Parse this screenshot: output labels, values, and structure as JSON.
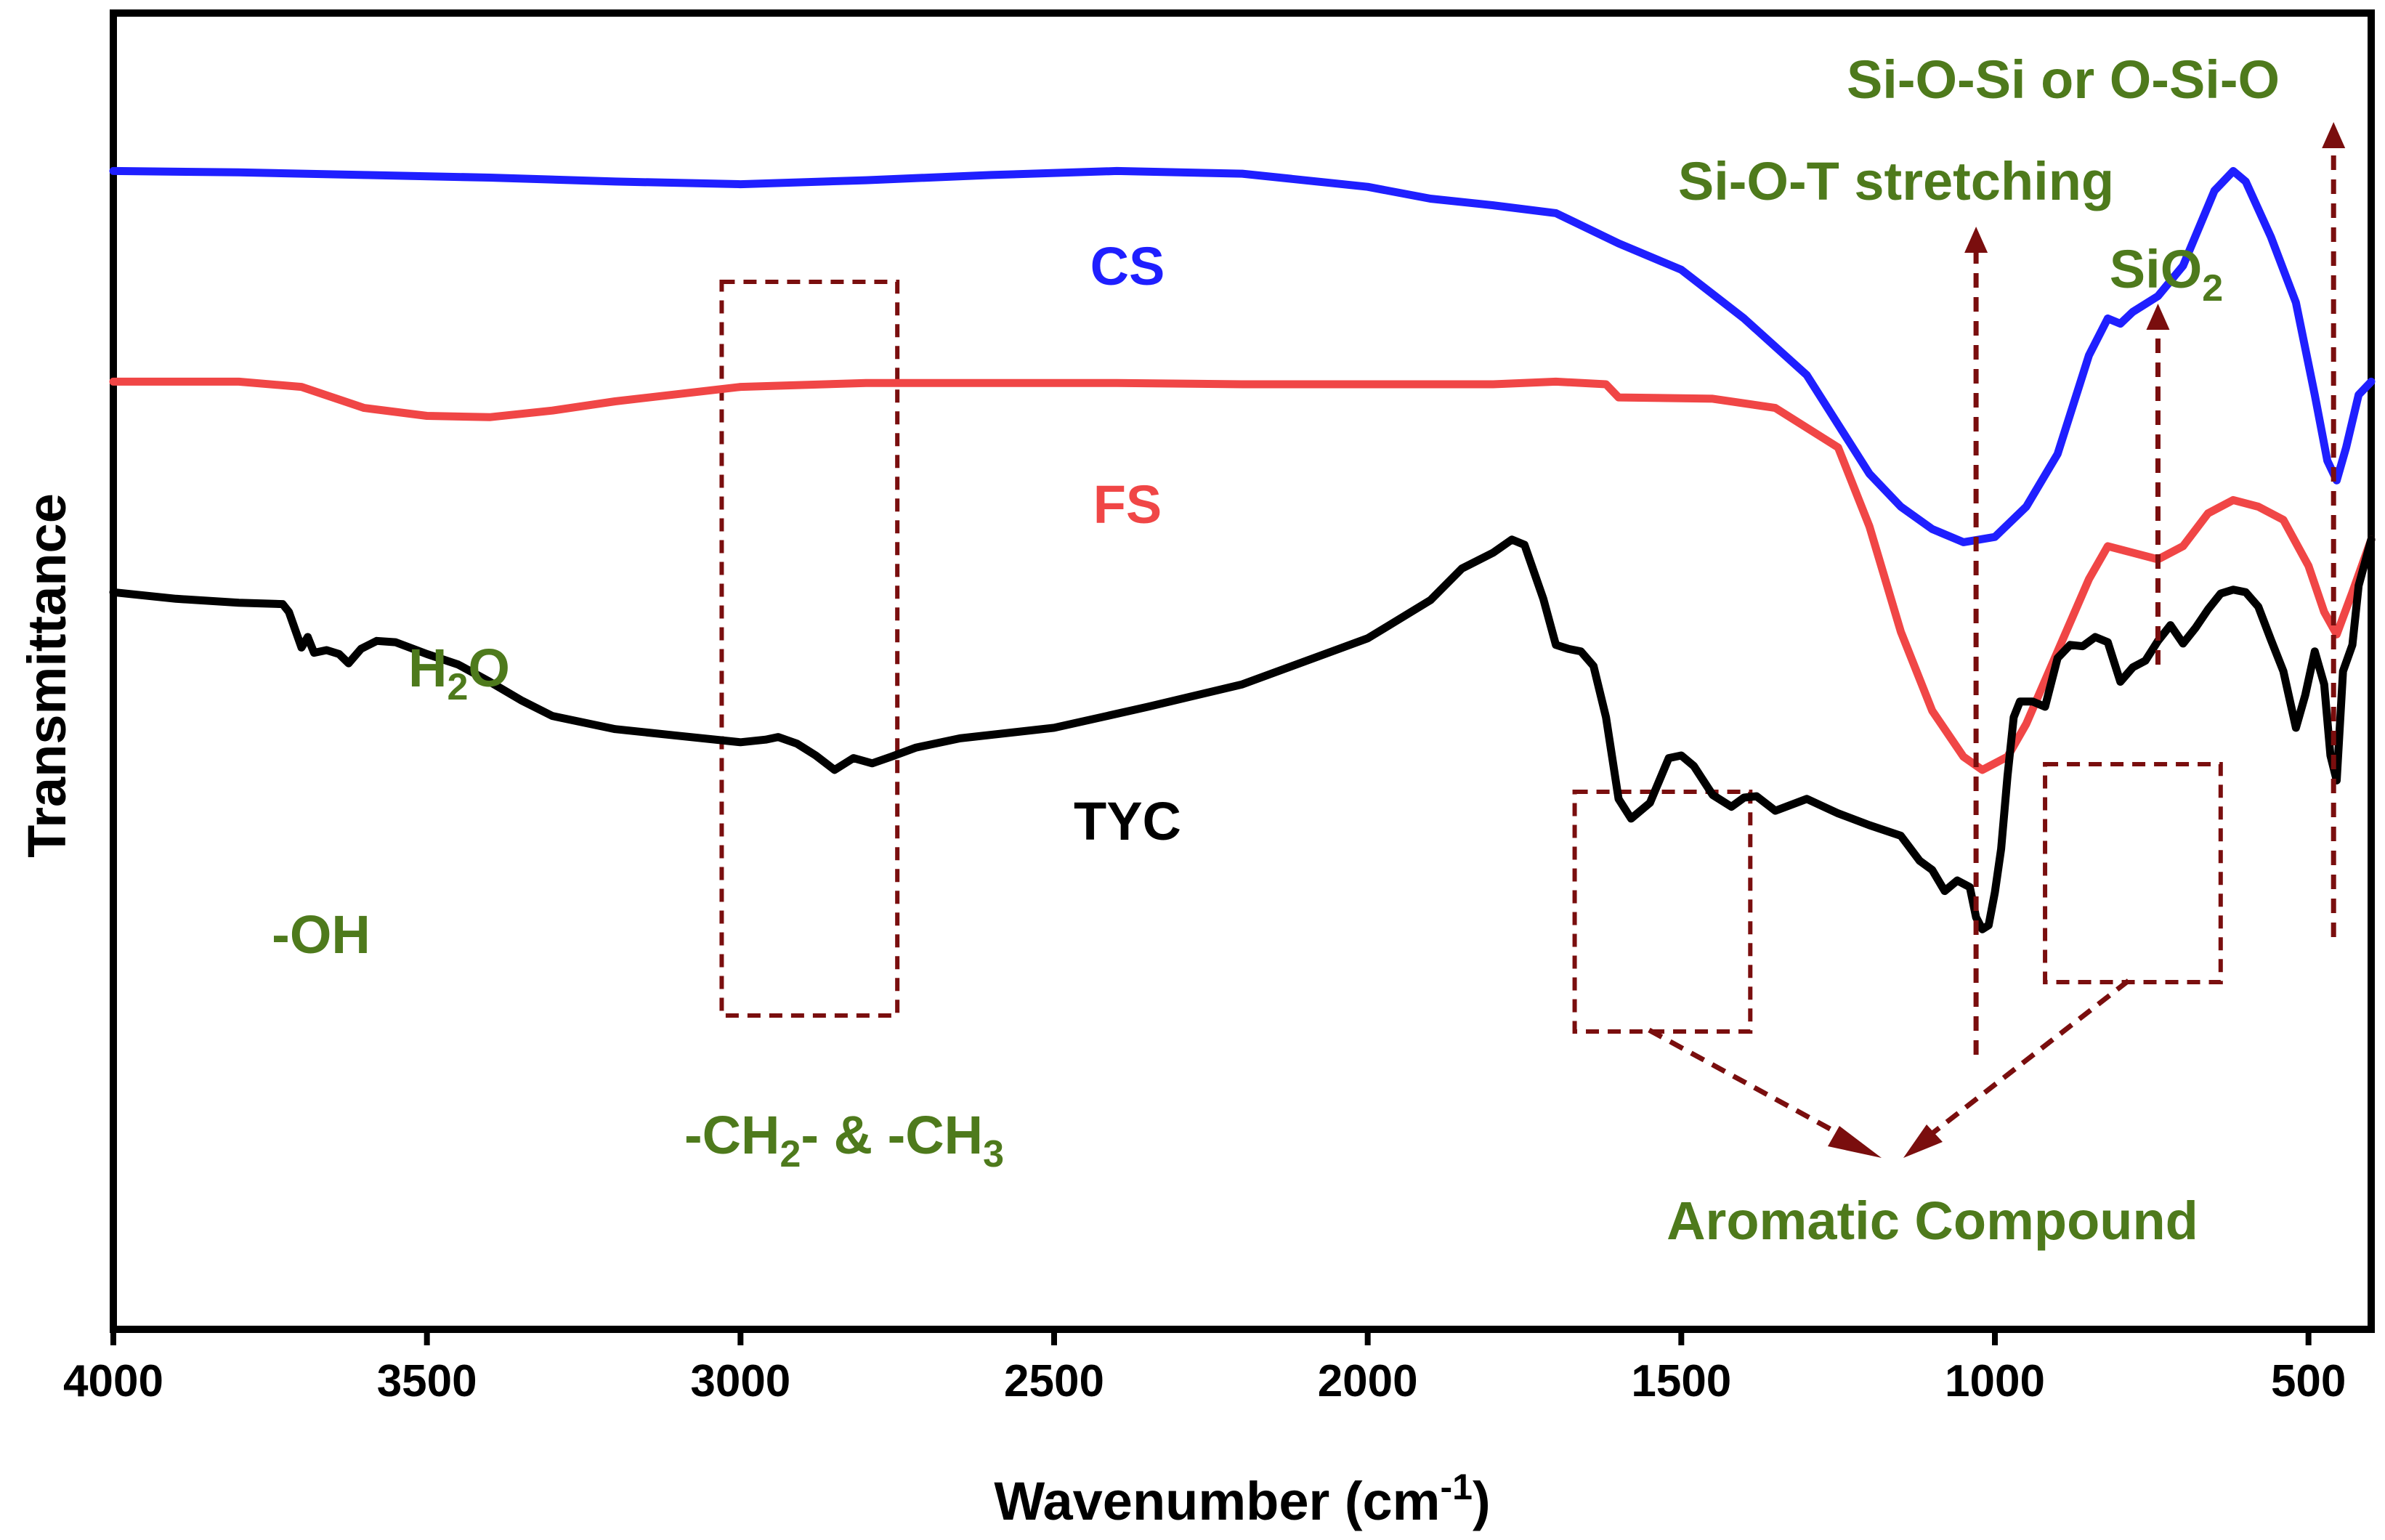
{
  "chart_data": {
    "type": "line",
    "title": "",
    "xlabel": "Wavenumber (cm",
    "xlabel_sup": "-1",
    "xlabel_tail": ")",
    "ylabel": "Transmittance",
    "xlim": [
      4000,
      400
    ],
    "ylim": [
      0,
      100
    ],
    "x_ticks": [
      4000,
      3500,
      3000,
      2500,
      2000,
      1500,
      1000,
      500
    ],
    "grid": false,
    "colors": {
      "CS": "#1f1fff",
      "FS": "#f04646",
      "TYC": "#000000",
      "annotation": "#4e7a1c",
      "marker": "#7a0e0e"
    },
    "series": [
      {
        "name": "CS",
        "color": "#1f1fff",
        "points": [
          [
            4000,
            88
          ],
          [
            3800,
            87.9
          ],
          [
            3600,
            87.7
          ],
          [
            3400,
            87.5
          ],
          [
            3200,
            87.2
          ],
          [
            3000,
            87.0
          ],
          [
            2800,
            87.3
          ],
          [
            2600,
            87.7
          ],
          [
            2400,
            88.0
          ],
          [
            2200,
            87.8
          ],
          [
            2000,
            86.8
          ],
          [
            1900,
            85.9
          ],
          [
            1800,
            85.4
          ],
          [
            1700,
            84.8
          ],
          [
            1600,
            82.5
          ],
          [
            1500,
            80.5
          ],
          [
            1400,
            76.8
          ],
          [
            1300,
            72.5
          ],
          [
            1200,
            65.0
          ],
          [
            1150,
            62.5
          ],
          [
            1100,
            60.8
          ],
          [
            1050,
            59.8
          ],
          [
            1000,
            60.2
          ],
          [
            950,
            62.5
          ],
          [
            900,
            66.5
          ],
          [
            850,
            74.0
          ],
          [
            820,
            76.8
          ],
          [
            800,
            76.4
          ],
          [
            780,
            77.3
          ],
          [
            740,
            78.5
          ],
          [
            700,
            80.8
          ],
          [
            650,
            86.5
          ],
          [
            620,
            88.0
          ],
          [
            600,
            87.2
          ],
          [
            560,
            83.0
          ],
          [
            520,
            78.0
          ],
          [
            490,
            71.0
          ],
          [
            470,
            66.0
          ],
          [
            455,
            64.5
          ],
          [
            440,
            67.0
          ],
          [
            420,
            71.0
          ],
          [
            400,
            72.0
          ]
        ]
      },
      {
        "name": "FS",
        "color": "#f04646",
        "points": [
          [
            4000,
            72
          ],
          [
            3800,
            72.0
          ],
          [
            3700,
            71.6
          ],
          [
            3600,
            70.0
          ],
          [
            3500,
            69.4
          ],
          [
            3400,
            69.3
          ],
          [
            3300,
            69.8
          ],
          [
            3200,
            70.5
          ],
          [
            3000,
            71.6
          ],
          [
            2800,
            71.9
          ],
          [
            2600,
            71.9
          ],
          [
            2400,
            71.9
          ],
          [
            2200,
            71.8
          ],
          [
            2000,
            71.8
          ],
          [
            1800,
            71.8
          ],
          [
            1700,
            72.0
          ],
          [
            1620,
            71.8
          ],
          [
            1600,
            70.8
          ],
          [
            1450,
            70.7
          ],
          [
            1350,
            70.0
          ],
          [
            1250,
            67.0
          ],
          [
            1200,
            61.0
          ],
          [
            1150,
            53.0
          ],
          [
            1100,
            47.0
          ],
          [
            1050,
            43.5
          ],
          [
            1020,
            42.5
          ],
          [
            980,
            43.5
          ],
          [
            950,
            46.0
          ],
          [
            900,
            51.5
          ],
          [
            850,
            57.0
          ],
          [
            820,
            59.5
          ],
          [
            780,
            59.0
          ],
          [
            740,
            58.5
          ],
          [
            700,
            59.5
          ],
          [
            660,
            62.0
          ],
          [
            620,
            63.0
          ],
          [
            580,
            62.5
          ],
          [
            540,
            61.5
          ],
          [
            500,
            58.0
          ],
          [
            475,
            54.5
          ],
          [
            455,
            52.8
          ],
          [
            430,
            56.0
          ],
          [
            400,
            60.0
          ]
        ]
      },
      {
        "name": "TYC",
        "color": "#000000",
        "points": [
          [
            4000,
            56
          ],
          [
            3900,
            55.5
          ],
          [
            3800,
            55.2
          ],
          [
            3730,
            55.1
          ],
          [
            3720,
            54.5
          ],
          [
            3700,
            51.8
          ],
          [
            3690,
            52.6
          ],
          [
            3680,
            51.4
          ],
          [
            3660,
            51.6
          ],
          [
            3640,
            51.3
          ],
          [
            3625,
            50.6
          ],
          [
            3605,
            51.7
          ],
          [
            3580,
            52.3
          ],
          [
            3550,
            52.2
          ],
          [
            3500,
            51.3
          ],
          [
            3450,
            50.5
          ],
          [
            3400,
            49.2
          ],
          [
            3350,
            47.8
          ],
          [
            3300,
            46.6
          ],
          [
            3200,
            45.6
          ],
          [
            3100,
            45.1
          ],
          [
            3000,
            44.6
          ],
          [
            2960,
            44.8
          ],
          [
            2940,
            45.0
          ],
          [
            2910,
            44.5
          ],
          [
            2880,
            43.6
          ],
          [
            2850,
            42.5
          ],
          [
            2820,
            43.4
          ],
          [
            2790,
            43.0
          ],
          [
            2760,
            43.5
          ],
          [
            2720,
            44.2
          ],
          [
            2650,
            44.9
          ],
          [
            2500,
            45.7
          ],
          [
            2350,
            47.3
          ],
          [
            2200,
            49.0
          ],
          [
            2000,
            52.5
          ],
          [
            1900,
            55.4
          ],
          [
            1850,
            57.8
          ],
          [
            1800,
            59.0
          ],
          [
            1770,
            60.0
          ],
          [
            1750,
            59.6
          ],
          [
            1720,
            55.5
          ],
          [
            1700,
            52.0
          ],
          [
            1680,
            51.7
          ],
          [
            1660,
            51.5
          ],
          [
            1640,
            50.4
          ],
          [
            1620,
            46.5
          ],
          [
            1600,
            40.3
          ],
          [
            1580,
            38.8
          ],
          [
            1550,
            40.0
          ],
          [
            1520,
            43.4
          ],
          [
            1500,
            43.6
          ],
          [
            1480,
            42.8
          ],
          [
            1450,
            40.6
          ],
          [
            1420,
            39.7
          ],
          [
            1400,
            40.4
          ],
          [
            1380,
            40.5
          ],
          [
            1350,
            39.4
          ],
          [
            1300,
            40.3
          ],
          [
            1250,
            39.2
          ],
          [
            1200,
            38.3
          ],
          [
            1150,
            37.5
          ],
          [
            1120,
            35.6
          ],
          [
            1100,
            34.9
          ],
          [
            1080,
            33.3
          ],
          [
            1060,
            34.1
          ],
          [
            1040,
            33.6
          ],
          [
            1030,
            31.3
          ],
          [
            1020,
            30.4
          ],
          [
            1010,
            30.7
          ],
          [
            1000,
            33.2
          ],
          [
            990,
            36.5
          ],
          [
            980,
            42.0
          ],
          [
            970,
            46.5
          ],
          [
            960,
            47.7
          ],
          [
            940,
            47.7
          ],
          [
            920,
            47.3
          ],
          [
            900,
            51.0
          ],
          [
            880,
            52.0
          ],
          [
            860,
            51.9
          ],
          [
            840,
            52.6
          ],
          [
            820,
            52.2
          ],
          [
            800,
            49.2
          ],
          [
            780,
            50.3
          ],
          [
            760,
            50.8
          ],
          [
            740,
            52.3
          ],
          [
            720,
            53.5
          ],
          [
            700,
            52.1
          ],
          [
            680,
            53.3
          ],
          [
            660,
            54.7
          ],
          [
            640,
            55.9
          ],
          [
            620,
            56.2
          ],
          [
            600,
            56.0
          ],
          [
            580,
            54.9
          ],
          [
            560,
            52.4
          ],
          [
            540,
            50.0
          ],
          [
            520,
            45.7
          ],
          [
            505,
            48.2
          ],
          [
            490,
            51.5
          ],
          [
            475,
            49.0
          ],
          [
            465,
            43.6
          ],
          [
            455,
            41.7
          ],
          [
            445,
            50.0
          ],
          [
            430,
            52.0
          ],
          [
            420,
            56.5
          ],
          [
            400,
            60.0
          ]
        ]
      }
    ],
    "series_labels": [
      {
        "name": "CS",
        "text": "CS"
      },
      {
        "name": "FS",
        "text": "FS"
      },
      {
        "name": "TYC",
        "text": "TYC"
      }
    ],
    "annotations": {
      "h2o_main": "H",
      "h2o_sub": "2",
      "h2o_tail": "O",
      "oh": "-OH",
      "ch_a": "-CH",
      "ch_b": "2",
      "ch_c": "- & -CH",
      "ch_d": "3",
      "aromatic": "Aromatic Compound",
      "siot": "Si-O-T stretching",
      "sio2_main": "SiO",
      "sio2_sub": "2",
      "siosi": "Si-O-Si or O-Si-O"
    },
    "highlight_boxes": [
      {
        "label": "-CH2- & -CH3",
        "x_range": [
          3030,
          2750
        ]
      },
      {
        "label": "Aromatic Compound",
        "x_range": [
          1670,
          1390
        ]
      },
      {
        "label": "Aromatic Compound",
        "x_range": [
          920,
          640
        ]
      }
    ],
    "marker_arrows": [
      {
        "label": "Si-O-T stretching",
        "x": 1030
      },
      {
        "label": "SiO2",
        "x": 740
      },
      {
        "label": "Si-O-Si or O-Si-O",
        "x": 460
      }
    ]
  }
}
